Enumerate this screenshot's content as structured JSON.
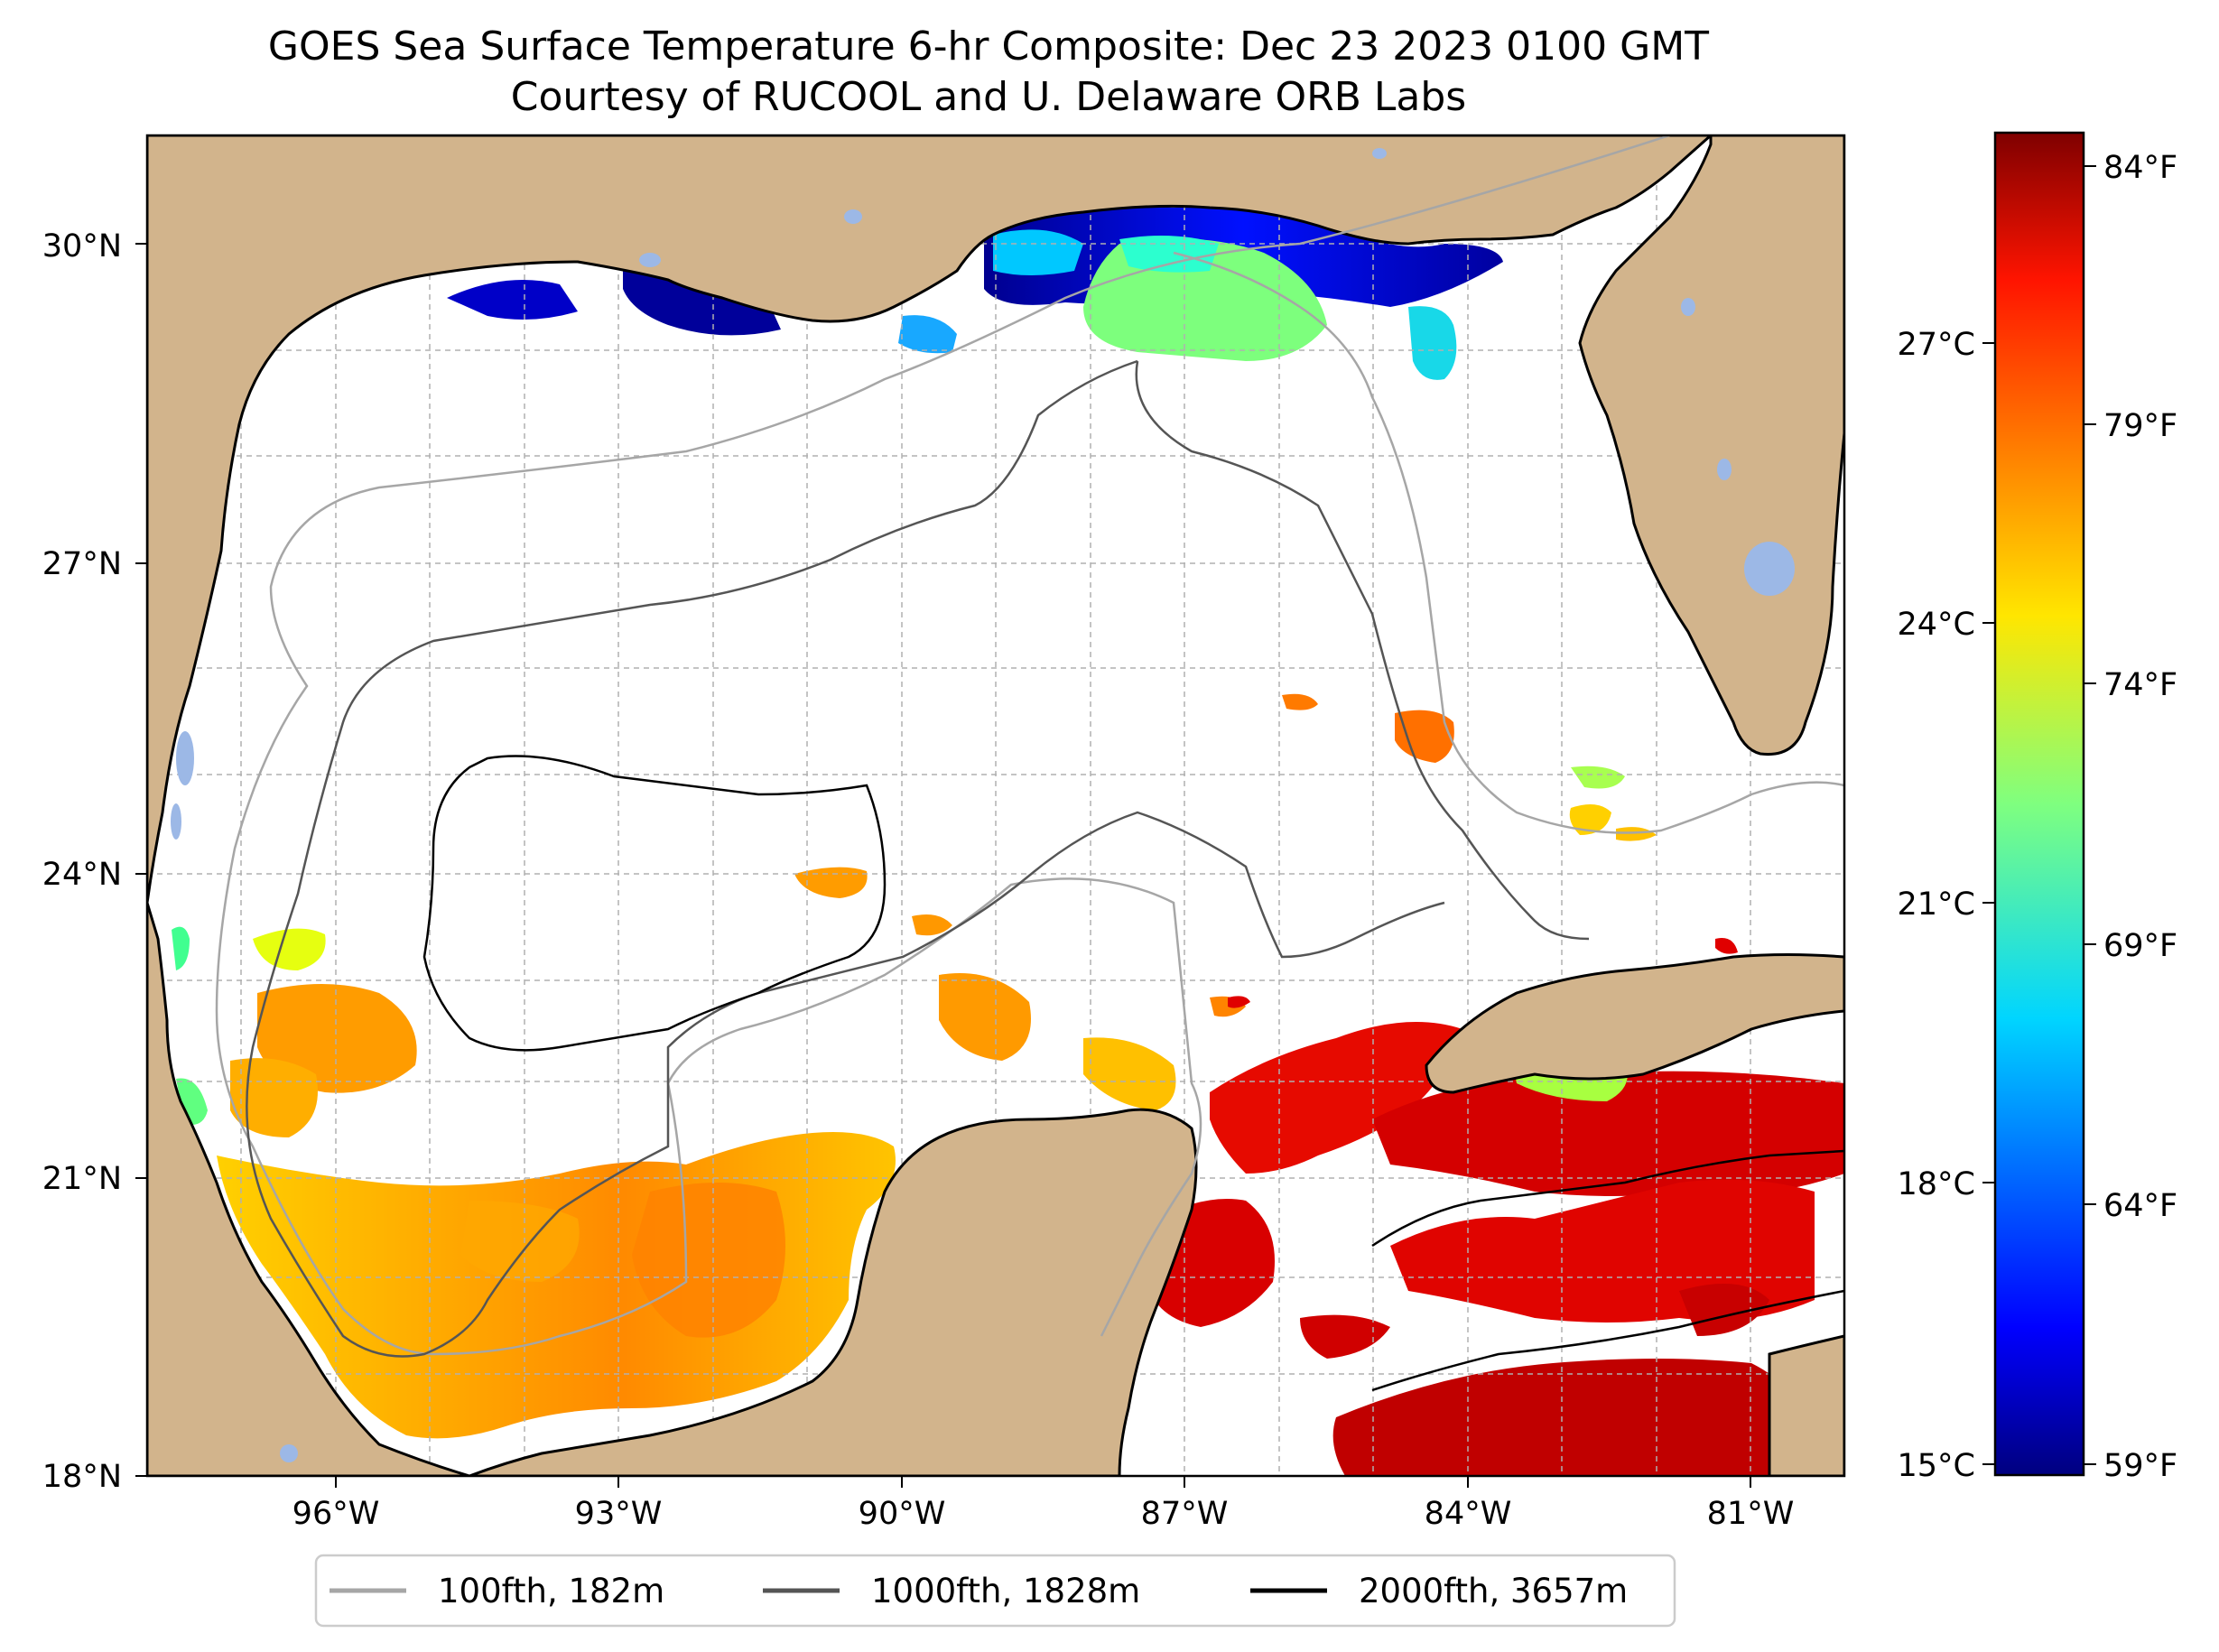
{
  "title": {
    "line1": "GOES Sea Surface Temperature 6-hr Composite: Dec 23 2023 0100 GMT",
    "line2": "Courtesy of RUCOOL and U. Delaware ORB Labs"
  },
  "map": {
    "lat_labels": [
      "30°N",
      "27°N",
      "24°N",
      "21°N",
      "18°N"
    ],
    "lon_labels": [
      "96°W",
      "93°W",
      "90°W",
      "87°W",
      "84°W",
      "81°W"
    ],
    "lat_range": [
      18,
      31
    ],
    "lon_range": [
      -98,
      -80
    ],
    "colors": {
      "land": "#d2b48c",
      "water_bodies": "#9cb8e6",
      "grid": "#b0b0b0"
    }
  },
  "colorbar": {
    "celsius_labels": [
      "27°C",
      "24°C",
      "21°C",
      "18°C",
      "15°C"
    ],
    "fahrenheit_labels": [
      "84°F",
      "79°F",
      "74°F",
      "69°F",
      "64°F",
      "59°F"
    ],
    "colormap": "jet"
  },
  "legend": {
    "items": [
      {
        "label": "100fth, 182m",
        "color": "#a6a6a6"
      },
      {
        "label": "1000fth, 1828m",
        "color": "#555555"
      },
      {
        "label": "2000fth, 3657m",
        "color": "#000000"
      }
    ]
  }
}
